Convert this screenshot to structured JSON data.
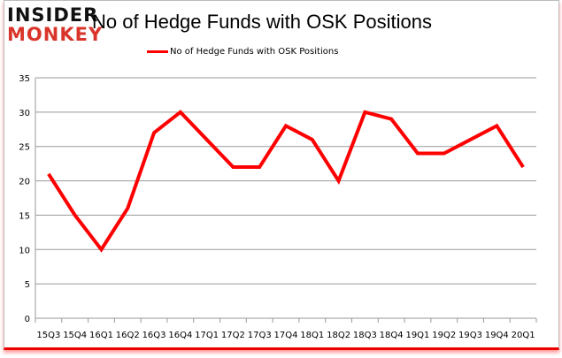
{
  "logo": {
    "line1": "INSIDER",
    "line2": "MONKEY"
  },
  "chart_data": {
    "type": "line",
    "title": "No of Hedge Funds with OSK Positions",
    "categories": [
      "15Q3",
      "15Q4",
      "16Q1",
      "16Q2",
      "16Q3",
      "16Q4",
      "17Q1",
      "17Q2",
      "17Q3",
      "17Q4",
      "18Q1",
      "18Q2",
      "18Q3",
      "18Q4",
      "19Q1",
      "19Q2",
      "19Q3",
      "19Q4",
      "20Q1"
    ],
    "series": [
      {
        "name": "No of Hedge Funds with OSK Positions",
        "color": "#ff0000",
        "values": [
          21,
          15,
          10,
          16,
          27,
          30,
          26,
          22,
          22,
          28,
          26,
          20,
          30,
          29,
          24,
          24,
          26,
          28,
          22
        ]
      }
    ],
    "ylim": [
      0,
      35
    ],
    "yticks": [
      0,
      5,
      10,
      15,
      20,
      25,
      30,
      35
    ],
    "grid": true,
    "legend": "top-center"
  }
}
